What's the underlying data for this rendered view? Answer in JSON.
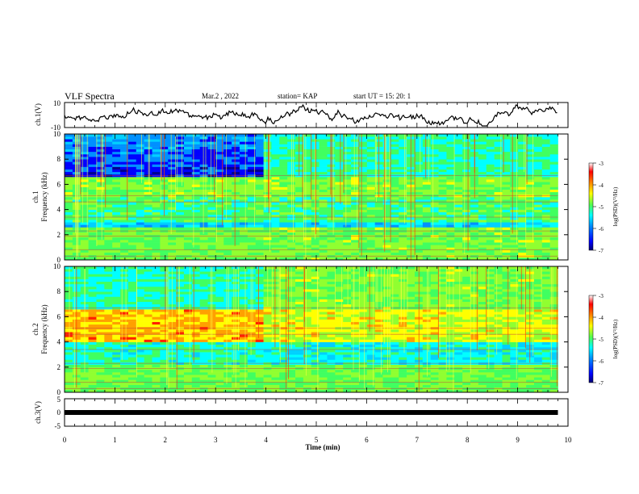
{
  "header": {
    "title": "VLF Spectra",
    "date": "Mar.2 , 2022",
    "station": "station= KAP",
    "start": "start UT = 15: 20: 1"
  },
  "chart_data": [
    {
      "type": "line",
      "name": "ch1-waveform",
      "ylabel": "ch.1(V)",
      "ylim": [
        -10,
        10
      ],
      "yticks": [
        "10",
        "-10"
      ],
      "xlim": [
        0,
        10
      ]
    },
    {
      "type": "heatmap",
      "name": "ch1-spectrogram",
      "ylabel": "ch.1\nFrequency (kHz)",
      "ylabel_lines": [
        "ch.1",
        "Frequency (kHz)"
      ],
      "ylim": [
        0,
        10
      ],
      "yticks": [
        "0",
        "2",
        "4",
        "6",
        "8",
        "10"
      ],
      "xlim": [
        0,
        10
      ],
      "data_end_min": 9.8,
      "colorbar": {
        "label": "log(PSD)(V²/Hz)",
        "range": [
          -7,
          -3
        ],
        "ticks": [
          "-3",
          "-4",
          "-5",
          "-6",
          "-7"
        ]
      }
    },
    {
      "type": "heatmap",
      "name": "ch2-spectrogram",
      "ylabel": "ch.2\nFrequency (kHz)",
      "ylabel_lines": [
        "ch.2",
        "Frequency (kHz)"
      ],
      "ylim": [
        0,
        10
      ],
      "yticks": [
        "0",
        "2",
        "4",
        "6",
        "8",
        "10"
      ],
      "xlim": [
        0,
        10
      ],
      "data_end_min": 9.8,
      "colorbar": {
        "label": "log(PSD)(V²/Hz)",
        "range": [
          -7,
          -3
        ],
        "ticks": [
          "-3",
          "-4",
          "-5",
          "-6",
          "-7"
        ]
      }
    },
    {
      "type": "line",
      "name": "ch3-waveform",
      "ylabel": "ch.3(V)",
      "ylim": [
        -5,
        5
      ],
      "yticks": [
        "5",
        "0",
        "-5"
      ],
      "xlabel": "Time (min)",
      "xlim": [
        0,
        10
      ],
      "xticks": [
        "0",
        "1",
        "2",
        "3",
        "4",
        "5",
        "6",
        "7",
        "8",
        "9",
        "10"
      ]
    }
  ],
  "colors": {
    "colormap": [
      "#000090",
      "#0000ff",
      "#0090ff",
      "#00ffff",
      "#50ff50",
      "#ffff00",
      "#ff9000",
      "#ff0000",
      "#ffffff"
    ]
  }
}
